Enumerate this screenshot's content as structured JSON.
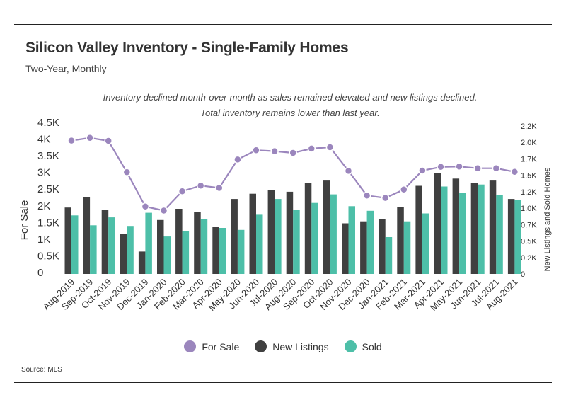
{
  "header": {
    "title": "Silicon Valley Inventory - Single-Family Homes",
    "subtitle": "Two-Year, Monthly",
    "caption": "Inventory declined month-over-month as sales remained elevated and new listings declined. Total inventory remains lower than last year.",
    "source": "Source:  MLS"
  },
  "legend": {
    "for_sale": "For Sale",
    "new_listings": "New Listings",
    "sold": "Sold"
  },
  "colors": {
    "for_sale": "#9b86bd",
    "new_listings": "#404040",
    "sold": "#4dbfa8"
  },
  "chart_data": {
    "type": "bar",
    "categories": [
      "Aug-2019",
      "Sep-2019",
      "Oct-2019",
      "Nov-2019",
      "Dec-2019",
      "Jan-2020",
      "Feb-2020",
      "Mar-2020",
      "Apr-2020",
      "May-2020",
      "Jun-2020",
      "Jul-2020",
      "Aug-2020",
      "Sep-2020",
      "Oct-2020",
      "Nov-2020",
      "Dec-2020",
      "Jan-2021",
      "Feb-2021",
      "Mar-2021",
      "Apr-2021",
      "May-2021",
      "Jun-2021",
      "Jul-2021",
      "Aug-2021"
    ],
    "series": [
      {
        "name": "For Sale",
        "type": "line",
        "axis": "left",
        "values": [
          4000,
          4080,
          3990,
          3050,
          2020,
          1900,
          2480,
          2650,
          2580,
          3430,
          3710,
          3680,
          3630,
          3760,
          3800,
          3090,
          2350,
          2280,
          2530,
          3100,
          3210,
          3220,
          3170,
          3170,
          3060
        ]
      },
      {
        "name": "New Listings",
        "type": "bar",
        "axis": "right",
        "values": [
          1010,
          1170,
          970,
          610,
          340,
          820,
          990,
          940,
          720,
          1140,
          1220,
          1280,
          1250,
          1380,
          1420,
          770,
          800,
          830,
          1020,
          1340,
          1530,
          1450,
          1380,
          1420,
          1140
        ]
      },
      {
        "name": "Sold",
        "type": "bar",
        "axis": "right",
        "values": [
          890,
          740,
          860,
          730,
          930,
          570,
          650,
          840,
          700,
          670,
          900,
          1140,
          970,
          1080,
          1210,
          1030,
          960,
          560,
          800,
          920,
          1330,
          1230,
          1360,
          1200,
          1120
        ]
      }
    ],
    "left_axis": {
      "label": "For Sale",
      "ticks": [
        "0",
        "0.5K",
        "1K",
        "1.5K",
        "2K",
        "2.5K",
        "3K",
        "3.5K",
        "4K",
        "4.5K"
      ],
      "ylim": [
        0,
        4500
      ]
    },
    "right_axis": {
      "label": "New Listings and Sold Homes",
      "ticks": [
        "0",
        "0.2K",
        "0.5K",
        "0.7K",
        "1.0K",
        "1.2K",
        "1.5K",
        "1.7K",
        "2.0K",
        "2.2K"
      ],
      "ylim": [
        0,
        2250
      ]
    },
    "grid": false,
    "legend_position": "bottom"
  }
}
